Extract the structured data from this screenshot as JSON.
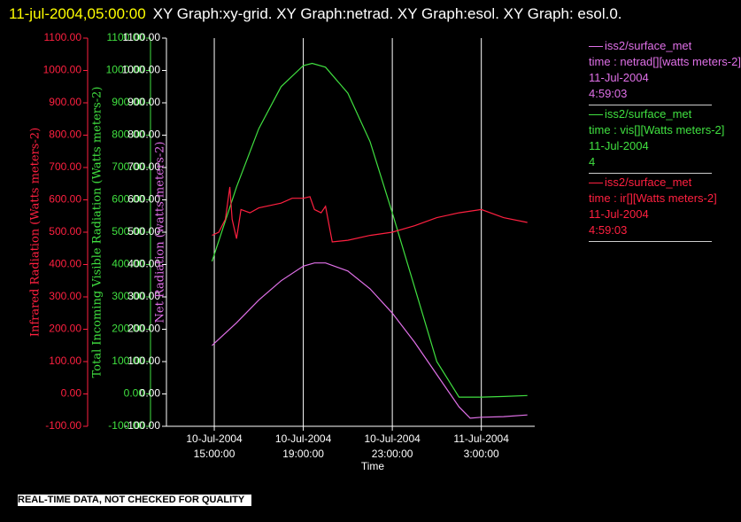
{
  "chart_data": {
    "type": "line",
    "date": "11-jul-2004,05:00:00",
    "title": "XY Graph:xy-grid.  XY Graph:netrad.  XY Graph:esol.  XY Graph: esol.0.",
    "xlabel": "Time",
    "xlim": [
      12.85,
      29.4
    ],
    "xticks": [
      {
        "value": 15,
        "label": "10-Jul-2004\n15:00:00"
      },
      {
        "value": 19,
        "label": "10-Jul-2004\n19:00:00"
      },
      {
        "value": 23,
        "label": "10-Jul-2004\n23:00:00"
      },
      {
        "value": 27,
        "label": "11-Jul-2004\n3:00:00"
      }
    ],
    "grid": true,
    "ylabel": "Infrared Radiation (Watts meters-2)",
    "ylim": [
      -100,
      1100
    ],
    "yticks": [
      {
        "value": 1100,
        "label": "1100.00"
      },
      {
        "value": 1000,
        "label": "1000.00"
      },
      {
        "value": 900,
        "label": "900.00"
      },
      {
        "value": 800,
        "label": "800.00"
      },
      {
        "value": 700,
        "label": "700.00"
      },
      {
        "value": 600,
        "label": "600.00"
      },
      {
        "value": 500,
        "label": "500.00"
      },
      {
        "value": 400,
        "label": "400.00"
      },
      {
        "value": 300,
        "label": "300.00"
      },
      {
        "value": 200,
        "label": "200.00"
      },
      {
        "value": 100,
        "label": "100.00"
      },
      {
        "value": 0,
        "label": "0.00"
      },
      {
        "value": -100,
        "label": "-100.00"
      }
    ],
    "y2label": "Total Incoming Visible Radiation (Watts meters-2)",
    "y2lim": [
      -100,
      1100
    ],
    "y2ticks": [
      {
        "value": 1100,
        "label": "1100.00"
      },
      {
        "value": 1000,
        "label": "1000.00"
      },
      {
        "value": 900,
        "label": "900.00"
      },
      {
        "value": 800,
        "label": "800.00"
      },
      {
        "value": 700,
        "label": "700.00"
      },
      {
        "value": 600,
        "label": "600.00"
      },
      {
        "value": 500,
        "label": "500.00"
      },
      {
        "value": 400,
        "label": "400.00"
      },
      {
        "value": 300,
        "label": "300.00"
      },
      {
        "value": 200,
        "label": "200.00"
      },
      {
        "value": 100,
        "label": "100.00"
      },
      {
        "value": 0,
        "label": "0.00"
      },
      {
        "value": -100,
        "label": "-100.00"
      }
    ],
    "y3label": "Net Radiation (watts meters-2)",
    "y3lim": [
      -100,
      1100
    ],
    "y3ticks": [
      {
        "value": 1100,
        "label": "1100.00"
      },
      {
        "value": 1000,
        "label": "1000.00"
      },
      {
        "value": 900,
        "label": "900.00"
      },
      {
        "value": 800,
        "label": "800.00"
      },
      {
        "value": 700,
        "label": "700.00"
      },
      {
        "value": 600,
        "label": "600.00"
      },
      {
        "value": 500,
        "label": "500.00"
      },
      {
        "value": 400,
        "label": "400.00"
      },
      {
        "value": 300,
        "label": "300.00"
      },
      {
        "value": 200,
        "label": "200.00"
      },
      {
        "value": 100,
        "label": "100.00"
      },
      {
        "value": 0,
        "label": "0.00"
      },
      {
        "value": -100,
        "label": "-100.00"
      }
    ],
    "series": [
      {
        "name": "iss2/surface_met",
        "legend_detail": [
          "time : netrad[][watts meters-2]",
          "11-Jul-2004",
          "4:59:03"
        ],
        "color": "#e070e8",
        "axis": "y3",
        "x": [
          14.9,
          16,
          17,
          18,
          19,
          19.5,
          20,
          21,
          22,
          23,
          24,
          25,
          26,
          26.5,
          27,
          28,
          29.07
        ],
        "values": [
          150,
          220,
          290,
          350,
          395,
          405,
          405,
          380,
          325,
          250,
          160,
          60,
          -40,
          -75,
          -72,
          -70,
          -65
        ]
      },
      {
        "name": "iss2/surface_met",
        "legend_detail": [
          "time : vis[][Watts meters-2]",
          "11-Jul-2004",
          "4"
        ],
        "color": "#40e040",
        "axis": "y2",
        "x": [
          14.9,
          16,
          17,
          18,
          19,
          19.4,
          20,
          21,
          22,
          23,
          24,
          25,
          26,
          26.4,
          27,
          28,
          29.07
        ],
        "values": [
          410,
          640,
          820,
          950,
          1015,
          1022,
          1010,
          930,
          780,
          560,
          330,
          100,
          -10,
          -10,
          -10,
          -8,
          -5
        ]
      },
      {
        "name": "iss2/surface_met",
        "legend_detail": [
          "time : ir[][Watts meters-2]",
          "11-Jul-2004",
          "4:59:03"
        ],
        "color": "#ff2040",
        "axis": "y",
        "x": [
          14.9,
          15.2,
          15.5,
          15.7,
          15.8,
          16,
          16.2,
          16.6,
          17,
          18,
          18.5,
          19,
          19.3,
          19.5,
          19.8,
          20,
          20.3,
          21,
          22,
          23,
          24,
          25,
          26,
          27,
          28,
          29.07
        ],
        "values": [
          490,
          500,
          540,
          640,
          540,
          480,
          570,
          560,
          575,
          590,
          605,
          605,
          610,
          570,
          560,
          580,
          470,
          475,
          490,
          500,
          520,
          545,
          560,
          570,
          545,
          530
        ]
      }
    ],
    "footer": "REAL-TIME DATA, NOT CHECKED FOR QUALITY"
  }
}
